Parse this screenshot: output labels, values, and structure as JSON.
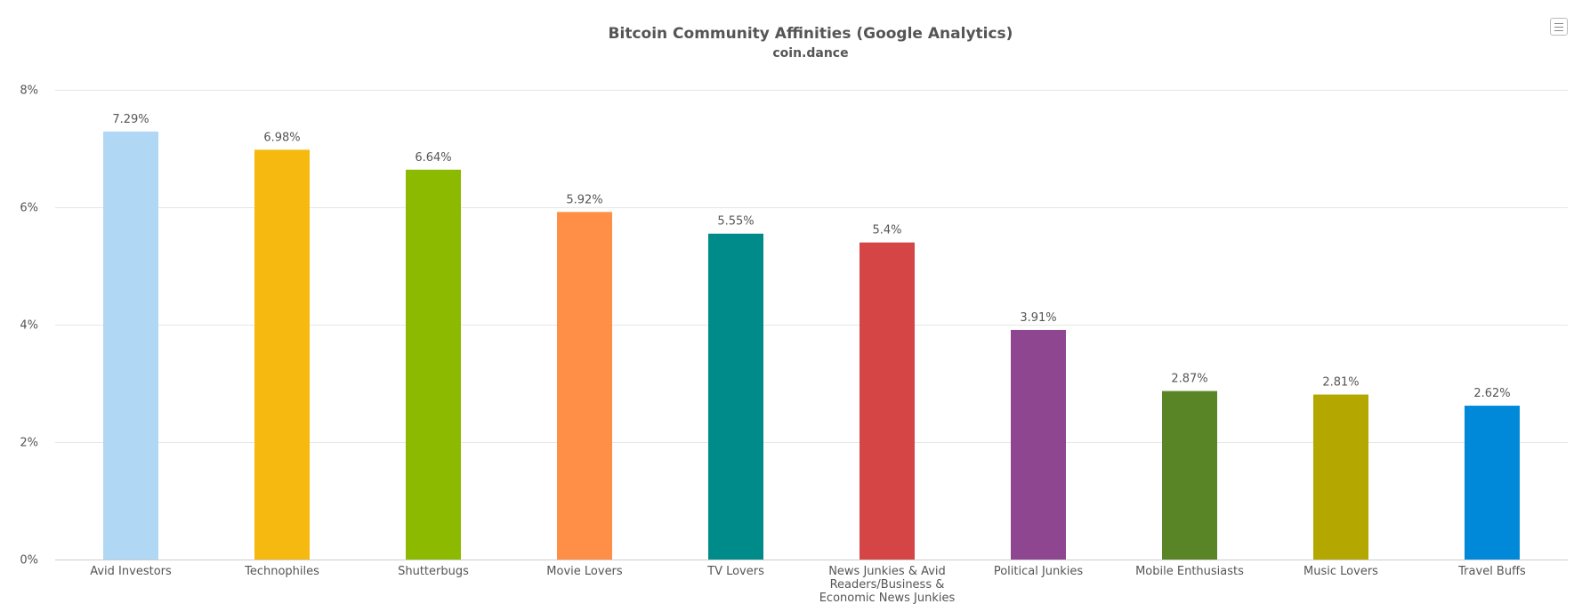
{
  "chart_data": {
    "type": "bar",
    "title": "Bitcoin Community Affinities (Google Analytics)",
    "subtitle": "coin.dance",
    "xlabel": "",
    "ylabel": "",
    "ylim": [
      0,
      8
    ],
    "y_ticks": [
      "0%",
      "2%",
      "4%",
      "6%",
      "8%"
    ],
    "y_tick_values": [
      0,
      2,
      4,
      6,
      8
    ],
    "grid": true,
    "legend": "none",
    "categories": [
      "Avid Investors",
      "Technophiles",
      "Shutterbugs",
      "Movie Lovers",
      "TV Lovers",
      "News Junkies & Avid Readers/Business & Economic News Junkies",
      "Political Junkies",
      "Mobile Enthusiasts",
      "Music Lovers",
      "Travel Buffs"
    ],
    "category_lines": [
      [
        "Avid Investors"
      ],
      [
        "Technophiles"
      ],
      [
        "Shutterbugs"
      ],
      [
        "Movie Lovers"
      ],
      [
        "TV Lovers"
      ],
      [
        "News Junkies & Avid",
        "Readers/Business &",
        "Economic News Junkies"
      ],
      [
        "Political Junkies"
      ],
      [
        "Mobile Enthusiasts"
      ],
      [
        "Music Lovers"
      ],
      [
        "Travel Buffs"
      ]
    ],
    "values": [
      7.29,
      6.98,
      6.64,
      5.92,
      5.55,
      5.4,
      3.91,
      2.87,
      2.81,
      2.62
    ],
    "value_labels": [
      "7.29%",
      "6.98%",
      "6.64%",
      "5.92%",
      "5.55%",
      "5.4%",
      "3.91%",
      "2.87%",
      "2.81%",
      "2.62%"
    ],
    "colors": [
      "#b0d8f5",
      "#f5b90f",
      "#8cba00",
      "#ff8f46",
      "#008b8b",
      "#d64545",
      "#8e4690",
      "#5a8527",
      "#b3a700",
      "#0089d9"
    ]
  },
  "toolbar": {
    "menu_icon": "hamburger-menu-icon"
  }
}
